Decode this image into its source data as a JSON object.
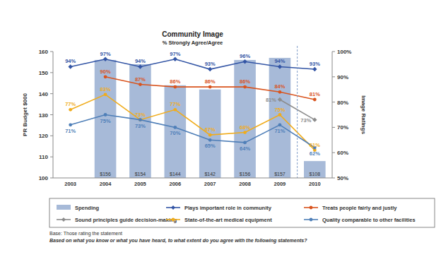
{
  "chart_data": {
    "type": "bar",
    "title": "Community Image",
    "subtitle": "% Strongly Agree/Agree",
    "ylabel": "PR Budget $000",
    "y2label": "Image Ratings",
    "categories": [
      "2003",
      "2004",
      "2005",
      "2006",
      "2007",
      "2008",
      "2009",
      "2010"
    ],
    "ylim": [
      100,
      160
    ],
    "yticks": [
      100,
      110,
      120,
      130,
      140,
      150,
      160
    ],
    "y2lim": [
      50,
      100
    ],
    "y2ticks": [
      {
        "value": 50,
        "label": "50%"
      },
      {
        "value": 60,
        "label": "60%"
      },
      {
        "value": 70,
        "label": "70%"
      },
      {
        "value": 80,
        "label": "80%"
      },
      {
        "value": 90,
        "label": "90%"
      },
      {
        "value": 100,
        "label": "100%"
      }
    ],
    "grid": false,
    "data_labels": true,
    "series": [
      {
        "name": "Spending",
        "type": "bar",
        "color": "#a7bad8",
        "values": [
          null,
          156,
          154,
          144,
          142,
          156,
          157,
          108
        ],
        "value_labels": [
          null,
          "$156",
          "$154",
          "$144",
          "$142",
          "$156",
          "$157",
          "$108"
        ]
      },
      {
        "name": "Plays important role in community",
        "type": "line",
        "axis": "y2",
        "color": "#3355a5",
        "marker": "diamond",
        "values": [
          94,
          97,
          94,
          97,
          93,
          96,
          94,
          93
        ],
        "value_labels": [
          "94%",
          "97%",
          "94%",
          "97%",
          "93%",
          "96%",
          "94%",
          "93%"
        ]
      },
      {
        "name": "Treats people fairly and justly",
        "type": "line",
        "axis": "y2",
        "color": "#d9541e",
        "marker": "circle",
        "values": [
          null,
          90,
          87,
          86,
          86,
          86,
          84,
          81
        ],
        "value_labels": [
          null,
          "90%",
          "87%",
          "86%",
          "86%",
          "86%",
          "84%",
          "81%"
        ]
      },
      {
        "name": "Sound principles guide decision-making",
        "type": "line",
        "axis": "y2",
        "color": "#8c8c8c",
        "marker": "diamond",
        "values": [
          null,
          null,
          null,
          null,
          null,
          null,
          81,
          73
        ],
        "value_labels": [
          null,
          null,
          null,
          null,
          null,
          null,
          "81%",
          "73%"
        ]
      },
      {
        "name": "State-of-the-art medical equipment",
        "type": "line",
        "axis": "y2",
        "color": "#f0ac1c",
        "marker": "circle",
        "values": [
          77,
          83,
          73,
          77,
          67,
          68,
          75,
          61
        ],
        "value_labels": [
          "77%",
          "83%",
          "73%",
          "77%",
          "67%",
          "68%",
          "75%",
          "61%"
        ]
      },
      {
        "name": "Quality comparable to other facilities",
        "type": "line",
        "axis": "y2",
        "color": "#4f7fb8",
        "marker": "circle",
        "values": [
          71,
          75,
          73,
          70,
          65,
          64,
          71,
          62
        ],
        "value_labels": [
          "71%",
          "75%",
          "73%",
          "70%",
          "65%",
          "64%",
          "71%",
          "62%"
        ]
      }
    ],
    "annotations": [
      "Base: Those rating the statement",
      "Based on what you know or what you have heard, to what extent do you agree with the following statements?"
    ]
  }
}
